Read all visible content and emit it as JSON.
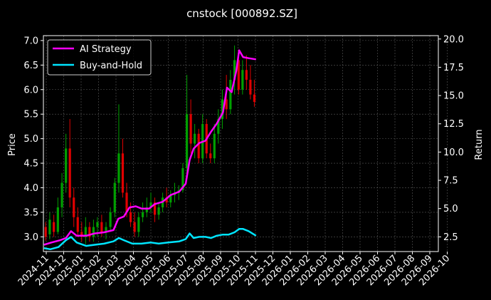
{
  "chart_data": {
    "type": "line",
    "title": "cnstock [000892.SZ]",
    "xlabel": "",
    "ylabel": "Price",
    "y2label": "Return",
    "ylim": [
      2.7,
      7.1
    ],
    "y2lim": [
      1.2,
      20.3
    ],
    "yticks": [
      "3.0",
      "3.5",
      "4.0",
      "4.5",
      "5.0",
      "5.5",
      "6.0",
      "6.5",
      "7.0"
    ],
    "y2ticks": [
      "2.5",
      "5.0",
      "7.5",
      "10.0",
      "12.5",
      "15.0",
      "17.5",
      "20.0"
    ],
    "xticks": [
      "2024-11",
      "2024-12",
      "2025-01",
      "2025-02",
      "2025-03",
      "2025-04",
      "2025-05",
      "2025-06",
      "2025-07",
      "2025-08",
      "2025-09",
      "2025-10",
      "2025-11",
      "2025-12",
      "2026-01",
      "2026-02",
      "2026-03",
      "2026-04",
      "2026-05",
      "2026-06",
      "2026-07",
      "2026-08",
      "2026-09",
      "2026-10"
    ],
    "grid": true,
    "legend_position": "top-left",
    "colors": {
      "up": "#00a000",
      "down": "#e00000",
      "strategy": "#ff00ff",
      "buyhold": "#00e5ff",
      "grid": "#5a5a5a"
    },
    "candles": [
      {
        "date": "2024-10-31",
        "open": 3.2,
        "high": 3.3,
        "low": 2.92,
        "close": 3.0
      },
      {
        "date": "2024-11-07",
        "open": 3.05,
        "high": 3.5,
        "low": 2.95,
        "close": 3.35
      },
      {
        "date": "2024-11-14",
        "open": 3.3,
        "high": 3.45,
        "low": 3.0,
        "close": 3.1
      },
      {
        "date": "2024-11-21",
        "open": 3.1,
        "high": 3.8,
        "low": 3.05,
        "close": 3.6
      },
      {
        "date": "2024-11-28",
        "open": 3.6,
        "high": 4.3,
        "low": 3.4,
        "close": 4.1
      },
      {
        "date": "2024-12-05",
        "open": 4.1,
        "high": 5.1,
        "low": 3.9,
        "close": 4.8
      },
      {
        "date": "2024-12-12",
        "open": 4.8,
        "high": 5.4,
        "low": 3.6,
        "close": 3.8
      },
      {
        "date": "2024-12-19",
        "open": 3.8,
        "high": 4.0,
        "low": 3.2,
        "close": 3.4
      },
      {
        "date": "2024-12-26",
        "open": 3.4,
        "high": 3.6,
        "low": 3.0,
        "close": 3.1
      },
      {
        "date": "2025-01-02",
        "open": 3.1,
        "high": 3.3,
        "low": 2.9,
        "close": 3.0
      },
      {
        "date": "2025-01-09",
        "open": 3.0,
        "high": 3.4,
        "low": 2.85,
        "close": 3.2
      },
      {
        "date": "2025-01-16",
        "open": 3.2,
        "high": 3.3,
        "low": 2.9,
        "close": 3.0
      },
      {
        "date": "2025-01-23",
        "open": 3.0,
        "high": 3.35,
        "low": 2.9,
        "close": 3.2
      },
      {
        "date": "2025-01-30",
        "open": 3.2,
        "high": 3.4,
        "low": 3.0,
        "close": 3.3
      },
      {
        "date": "2025-02-06",
        "open": 3.3,
        "high": 3.45,
        "low": 3.0,
        "close": 3.1
      },
      {
        "date": "2025-02-13",
        "open": 3.1,
        "high": 3.3,
        "low": 2.95,
        "close": 3.2
      },
      {
        "date": "2025-02-20",
        "open": 3.2,
        "high": 3.6,
        "low": 3.1,
        "close": 3.5
      },
      {
        "date": "2025-02-27",
        "open": 3.5,
        "high": 4.2,
        "low": 3.4,
        "close": 4.1
      },
      {
        "date": "2025-03-06",
        "open": 4.1,
        "high": 5.7,
        "low": 3.9,
        "close": 4.7
      },
      {
        "date": "2025-03-13",
        "open": 4.7,
        "high": 5.0,
        "low": 3.8,
        "close": 3.9
      },
      {
        "date": "2025-03-20",
        "open": 3.9,
        "high": 4.1,
        "low": 3.4,
        "close": 3.5
      },
      {
        "date": "2025-03-27",
        "open": 3.5,
        "high": 3.7,
        "low": 3.2,
        "close": 3.3
      },
      {
        "date": "2025-04-03",
        "open": 3.3,
        "high": 3.5,
        "low": 3.0,
        "close": 3.1
      },
      {
        "date": "2025-04-10",
        "open": 3.1,
        "high": 3.5,
        "low": 3.0,
        "close": 3.4
      },
      {
        "date": "2025-04-17",
        "open": 3.4,
        "high": 3.7,
        "low": 3.3,
        "close": 3.5
      },
      {
        "date": "2025-04-24",
        "open": 3.5,
        "high": 3.8,
        "low": 3.4,
        "close": 3.6
      },
      {
        "date": "2025-05-01",
        "open": 3.6,
        "high": 3.9,
        "low": 3.5,
        "close": 3.7
      },
      {
        "date": "2025-05-08",
        "open": 3.7,
        "high": 3.8,
        "low": 3.3,
        "close": 3.45
      },
      {
        "date": "2025-05-15",
        "open": 3.45,
        "high": 3.7,
        "low": 3.35,
        "close": 3.6
      },
      {
        "date": "2025-05-22",
        "open": 3.6,
        "high": 3.9,
        "low": 3.5,
        "close": 3.8
      },
      {
        "date": "2025-05-29",
        "open": 3.8,
        "high": 4.0,
        "low": 3.6,
        "close": 3.7
      },
      {
        "date": "2025-06-05",
        "open": 3.7,
        "high": 3.95,
        "low": 3.6,
        "close": 3.85
      },
      {
        "date": "2025-06-12",
        "open": 3.85,
        "high": 4.1,
        "low": 3.7,
        "close": 3.9
      },
      {
        "date": "2025-06-19",
        "open": 3.9,
        "high": 4.05,
        "low": 3.75,
        "close": 3.95
      },
      {
        "date": "2025-06-26",
        "open": 3.95,
        "high": 4.5,
        "low": 3.9,
        "close": 4.4
      },
      {
        "date": "2025-07-03",
        "open": 4.4,
        "high": 6.3,
        "low": 4.3,
        "close": 5.5
      },
      {
        "date": "2025-07-10",
        "open": 5.5,
        "high": 5.8,
        "low": 4.7,
        "close": 4.9
      },
      {
        "date": "2025-07-17",
        "open": 4.9,
        "high": 5.3,
        "low": 4.6,
        "close": 5.1
      },
      {
        "date": "2025-07-24",
        "open": 5.1,
        "high": 5.2,
        "low": 4.5,
        "close": 4.6
      },
      {
        "date": "2025-07-31",
        "open": 4.6,
        "high": 5.5,
        "low": 4.5,
        "close": 5.3
      },
      {
        "date": "2025-08-07",
        "open": 5.3,
        "high": 5.4,
        "low": 4.6,
        "close": 4.7
      },
      {
        "date": "2025-08-14",
        "open": 4.7,
        "high": 4.9,
        "low": 4.5,
        "close": 4.6
      },
      {
        "date": "2025-08-21",
        "open": 4.6,
        "high": 5.3,
        "low": 4.5,
        "close": 5.1
      },
      {
        "date": "2025-08-28",
        "open": 5.1,
        "high": 5.6,
        "low": 4.9,
        "close": 5.4
      },
      {
        "date": "2025-09-04",
        "open": 5.4,
        "high": 6.0,
        "low": 5.2,
        "close": 5.8
      },
      {
        "date": "2025-09-11",
        "open": 5.8,
        "high": 6.3,
        "low": 5.4,
        "close": 5.6
      },
      {
        "date": "2025-09-18",
        "open": 5.6,
        "high": 6.4,
        "low": 5.5,
        "close": 6.2
      },
      {
        "date": "2025-09-25",
        "open": 6.2,
        "high": 6.9,
        "low": 5.9,
        "close": 6.6
      },
      {
        "date": "2025-10-02",
        "open": 6.6,
        "high": 6.8,
        "low": 5.9,
        "close": 6.0
      },
      {
        "date": "2025-10-09",
        "open": 6.0,
        "high": 6.6,
        "low": 5.9,
        "close": 6.4
      },
      {
        "date": "2025-10-16",
        "open": 6.4,
        "high": 6.7,
        "low": 6.0,
        "close": 6.2
      },
      {
        "date": "2025-10-23",
        "open": 6.2,
        "high": 6.5,
        "low": 5.8,
        "close": 5.9
      },
      {
        "date": "2025-10-30",
        "open": 5.9,
        "high": 6.2,
        "low": 5.65,
        "close": 5.75
      }
    ],
    "series": [
      {
        "name": "AI Strategy",
        "color": "#ff00ff",
        "points": [
          [
            "2024-10-28",
            1.8
          ],
          [
            "2024-11-10",
            2.0
          ],
          [
            "2024-11-25",
            2.2
          ],
          [
            "2024-12-05",
            2.4
          ],
          [
            "2024-12-14",
            3.0
          ],
          [
            "2024-12-24",
            2.6
          ],
          [
            "2025-01-10",
            2.6
          ],
          [
            "2025-01-25",
            2.8
          ],
          [
            "2025-02-10",
            2.9
          ],
          [
            "2025-02-25",
            3.1
          ],
          [
            "2025-03-05",
            4.1
          ],
          [
            "2025-03-15",
            4.3
          ],
          [
            "2025-03-25",
            5.1
          ],
          [
            "2025-04-05",
            5.2
          ],
          [
            "2025-04-15",
            5.0
          ],
          [
            "2025-04-28",
            5.0
          ],
          [
            "2025-05-08",
            5.4
          ],
          [
            "2025-05-22",
            5.6
          ],
          [
            "2025-06-05",
            6.2
          ],
          [
            "2025-06-20",
            6.5
          ],
          [
            "2025-07-01",
            7.2
          ],
          [
            "2025-07-08",
            9.3
          ],
          [
            "2025-07-15",
            10.3
          ],
          [
            "2025-07-25",
            10.8
          ],
          [
            "2025-08-05",
            11.0
          ],
          [
            "2025-08-15",
            11.8
          ],
          [
            "2025-08-25",
            12.5
          ],
          [
            "2025-09-05",
            13.5
          ],
          [
            "2025-09-12",
            15.7
          ],
          [
            "2025-09-20",
            15.3
          ],
          [
            "2025-09-28",
            17.2
          ],
          [
            "2025-10-03",
            19.0
          ],
          [
            "2025-10-10",
            18.4
          ],
          [
            "2025-10-20",
            18.3
          ],
          [
            "2025-11-02",
            18.2
          ]
        ]
      },
      {
        "name": "Buy-and-Hold",
        "color": "#00e5ff",
        "points": [
          [
            "2024-10-28",
            1.5
          ],
          [
            "2024-11-08",
            1.4
          ],
          [
            "2024-11-22",
            1.6
          ],
          [
            "2024-12-05",
            2.2
          ],
          [
            "2024-12-14",
            2.5
          ],
          [
            "2024-12-24",
            2.0
          ],
          [
            "2025-01-10",
            1.7
          ],
          [
            "2025-01-25",
            1.8
          ],
          [
            "2025-02-10",
            1.9
          ],
          [
            "2025-02-25",
            2.1
          ],
          [
            "2025-03-06",
            2.4
          ],
          [
            "2025-03-15",
            2.2
          ],
          [
            "2025-03-30",
            1.9
          ],
          [
            "2025-04-15",
            1.9
          ],
          [
            "2025-05-01",
            2.0
          ],
          [
            "2025-05-15",
            1.9
          ],
          [
            "2025-06-01",
            2.0
          ],
          [
            "2025-06-20",
            2.1
          ],
          [
            "2025-07-01",
            2.3
          ],
          [
            "2025-07-08",
            2.8
          ],
          [
            "2025-07-15",
            2.4
          ],
          [
            "2025-07-25",
            2.5
          ],
          [
            "2025-08-05",
            2.5
          ],
          [
            "2025-08-15",
            2.4
          ],
          [
            "2025-08-25",
            2.6
          ],
          [
            "2025-09-05",
            2.7
          ],
          [
            "2025-09-15",
            2.7
          ],
          [
            "2025-09-25",
            2.9
          ],
          [
            "2025-10-03",
            3.2
          ],
          [
            "2025-10-10",
            3.2
          ],
          [
            "2025-10-20",
            3.0
          ],
          [
            "2025-11-02",
            2.6
          ]
        ]
      }
    ]
  }
}
